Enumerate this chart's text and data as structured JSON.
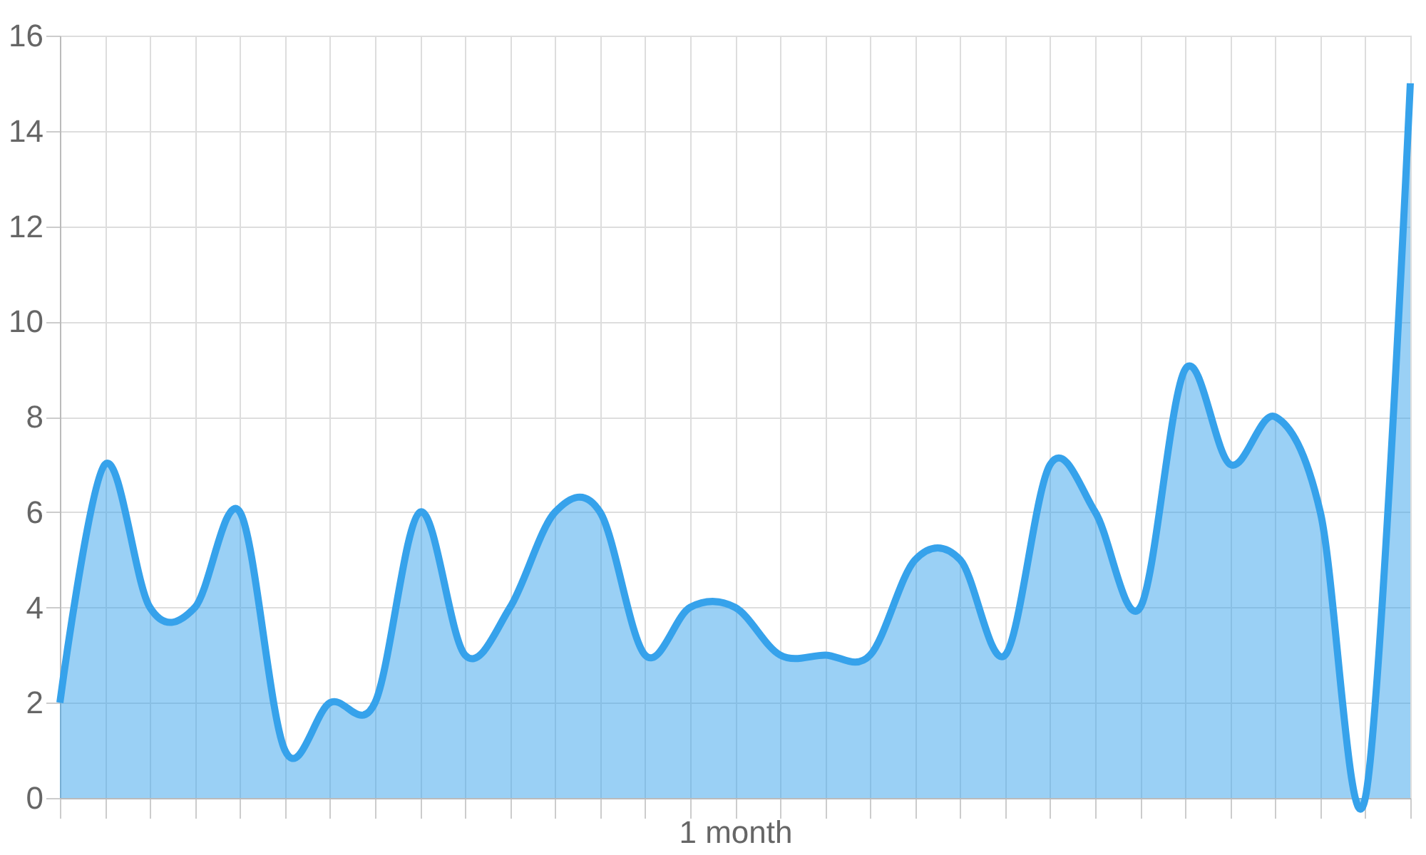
{
  "chart_data": {
    "type": "area",
    "categories": [
      null,
      null,
      null,
      null,
      null,
      null,
      null,
      null,
      null,
      null,
      null,
      null,
      null,
      null,
      null,
      "1 month",
      null,
      null,
      null,
      null,
      null,
      null,
      null,
      null,
      null,
      null,
      null,
      null,
      null,
      null,
      null
    ],
    "series": [
      {
        "color": "#36a2eb",
        "values": [
          2,
          7,
          4,
          4,
          6,
          1,
          2,
          2,
          6,
          3,
          4,
          6,
          6,
          3,
          4,
          4,
          3,
          3,
          3,
          5,
          5,
          3,
          7,
          6,
          4,
          9,
          7,
          8,
          6,
          0,
          15
        ]
      }
    ],
    "ylim": [
      0,
      16
    ],
    "yticks": [
      0,
      2,
      4,
      6,
      8,
      10,
      12,
      14,
      16
    ],
    "grid": true,
    "marker": "none",
    "line_style": "solid"
  }
}
